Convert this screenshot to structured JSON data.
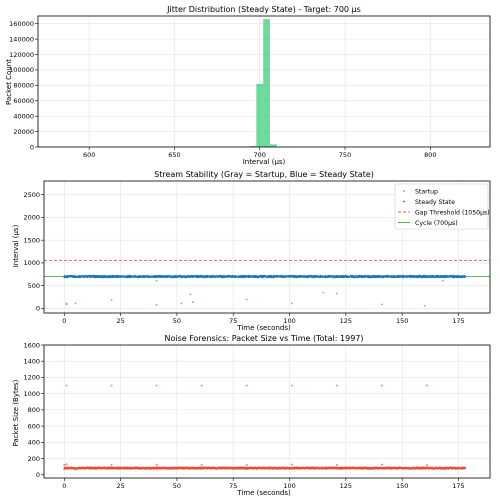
{
  "chart_data": [
    {
      "type": "bar",
      "title": "Jitter Distribution (Steady State) - Target: 700 μs",
      "xlabel": "Interval (μs)",
      "ylabel": "Packet Count",
      "xlim": [
        570,
        835
      ],
      "ylim": [
        0,
        170000
      ],
      "xticks": [
        600,
        650,
        700,
        750,
        800
      ],
      "yticks": [
        0,
        20000,
        40000,
        60000,
        80000,
        100000,
        120000,
        140000,
        160000
      ],
      "grid": true,
      "bar_color": "#2ecc71",
      "bins": [
        {
          "x0": 690,
          "x1": 694,
          "value": 100
        },
        {
          "x0": 694,
          "x1": 698,
          "value": 1300
        },
        {
          "x0": 698,
          "x1": 702,
          "value": 82000
        },
        {
          "x0": 702,
          "x1": 706,
          "value": 166000
        },
        {
          "x0": 706,
          "x1": 710,
          "value": 3500
        },
        {
          "x0": 710,
          "x1": 714,
          "value": 200
        }
      ]
    },
    {
      "type": "scatter",
      "title": "Stream Stability (Gray = Startup, Blue = Steady State)",
      "xlabel": "Time (seconds)",
      "ylabel": "Interval (μs)",
      "xlim": [
        -9,
        189
      ],
      "ylim": [
        -100,
        2800
      ],
      "xticks": [
        0,
        25,
        50,
        75,
        100,
        125,
        150,
        175
      ],
      "yticks": [
        0,
        500,
        1000,
        1500,
        2000,
        2500
      ],
      "grid": true,
      "legend_position": "top-right",
      "legend": [
        "Startup",
        "Steady State",
        "Gap Threshold (1050μs)",
        "Cycle (700μs)"
      ],
      "series": [
        {
          "name": "Steady State",
          "color": "#1f77b4",
          "band": {
            "x_start": 0,
            "x_end": 178,
            "y_low": 680,
            "y_high": 722
          },
          "outliers": [
            {
              "x": 1,
              "y": 90
            },
            {
              "x": 1,
              "y": 110
            },
            {
              "x": 5,
              "y": 115
            },
            {
              "x": 21,
              "y": 180
            },
            {
              "x": 41,
              "y": 80
            },
            {
              "x": 41,
              "y": 610
            },
            {
              "x": 52,
              "y": 110
            },
            {
              "x": 56,
              "y": 310
            },
            {
              "x": 57,
              "y": 140
            },
            {
              "x": 81,
              "y": 195
            },
            {
              "x": 101,
              "y": 110
            },
            {
              "x": 115,
              "y": 350
            },
            {
              "x": 121,
              "y": 330
            },
            {
              "x": 141,
              "y": 90
            },
            {
              "x": 160,
              "y": 60
            },
            {
              "x": 168,
              "y": 610
            }
          ]
        }
      ],
      "hlines": [
        {
          "name": "Gap Threshold (1050μs)",
          "y": 1050,
          "color": "#d62728",
          "style": "dashed"
        },
        {
          "name": "Cycle (700μs)",
          "y": 700,
          "color": "#2ca02c",
          "style": "solid"
        }
      ]
    },
    {
      "type": "scatter",
      "title": "Noise Forensics: Packet Size vs Time (Total: 1997)",
      "xlabel": "Time (seconds)",
      "ylabel": "Packet Size (Bytes)",
      "xlim": [
        -9,
        189
      ],
      "ylim": [
        -40,
        1600
      ],
      "xticks": [
        0,
        25,
        50,
        75,
        100,
        125,
        150,
        175
      ],
      "yticks": [
        0,
        200,
        400,
        600,
        800,
        1000,
        1200,
        1400,
        1600
      ],
      "grid": true,
      "series": [
        {
          "color": "#e74c3c",
          "band": {
            "x_start": 0,
            "x_end": 178,
            "y_low": 74,
            "y_high": 90
          },
          "high_points": [
            {
              "x": 1,
              "y": 1100
            },
            {
              "x": 21,
              "y": 1100
            },
            {
              "x": 41,
              "y": 1100
            },
            {
              "x": 61,
              "y": 1100
            },
            {
              "x": 81,
              "y": 1100
            },
            {
              "x": 101,
              "y": 1100
            },
            {
              "x": 121,
              "y": 1100
            },
            {
              "x": 141,
              "y": 1100
            },
            {
              "x": 161,
              "y": 1100
            }
          ],
          "spikes": [
            {
              "x": 0,
              "y": 120
            },
            {
              "x": 1,
              "y": 130
            },
            {
              "x": 5,
              "y": 65
            },
            {
              "x": 21,
              "y": 120
            },
            {
              "x": 41,
              "y": 125
            },
            {
              "x": 61,
              "y": 120
            },
            {
              "x": 81,
              "y": 120
            },
            {
              "x": 101,
              "y": 125
            },
            {
              "x": 121,
              "y": 120
            },
            {
              "x": 141,
              "y": 125
            },
            {
              "x": 161,
              "y": 120
            }
          ]
        }
      ]
    }
  ]
}
